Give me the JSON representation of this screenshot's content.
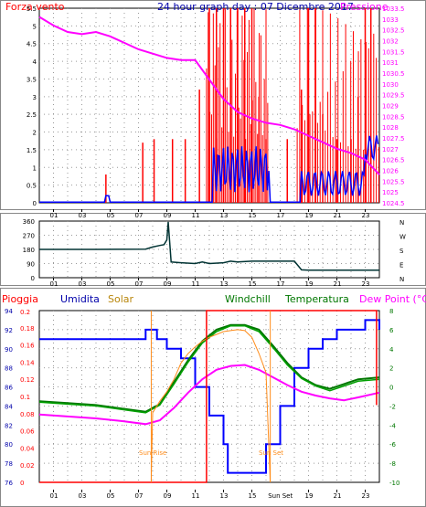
{
  "top": {
    "title": "24 hour graph day : 07 Dicembre 2017",
    "left_label": "Forza vento",
    "right_label": "Pressione",
    "left_ticks": [
      "0",
      "0.5",
      "1",
      "1.5",
      "2",
      "2.5",
      "3",
      "3.5",
      "4",
      "4.5",
      "5",
      "5.5"
    ],
    "right_ticks": [
      "1024.5",
      "1025",
      "1025.5",
      "1026",
      "1026.5",
      "1027",
      "1027.5",
      "1028",
      "1028.5",
      "1029",
      "1029.5",
      "1030",
      "1030.5",
      "1031",
      "1031.5",
      "1032",
      "1032.5",
      "1033",
      "1033.5"
    ],
    "x_ticks": [
      "01",
      "03",
      "05",
      "07",
      "09",
      "11",
      "13",
      "15",
      "17",
      "19",
      "21",
      "23"
    ]
  },
  "mid": {
    "y_ticks": [
      "360",
      "270",
      "180",
      "90",
      "0"
    ],
    "compass": [
      "N",
      "W",
      "S",
      "E",
      "N"
    ],
    "x_ticks": [
      "01",
      "03",
      "05",
      "07",
      "09",
      "11",
      "13",
      "15",
      "17",
      "19",
      "21",
      "23"
    ]
  },
  "bottom": {
    "labels": {
      "rain": "Pioggia",
      "humidity": "Umidita",
      "solar": "Solar",
      "windchill": "Windchill",
      "temperature": "Temperatura",
      "dewpoint": "Dew Point (°C)"
    },
    "humidity_ticks": [
      "76",
      "78",
      "80",
      "82",
      "84",
      "86",
      "88",
      "90",
      "92",
      "94"
    ],
    "rain_ticks": [
      "0",
      "0.02",
      "0.04",
      "0.06",
      "0.08",
      "0.1",
      "0.12",
      "0.14",
      "0.16",
      "0.18"
    ],
    "rain_top_tick": "0.2",
    "temp_ticks": [
      "-10",
      "-8",
      "-6",
      "-4",
      "-2",
      "0",
      "2",
      "4",
      "6",
      "8"
    ],
    "x_ticks": [
      "01",
      "03",
      "05",
      "07",
      "09",
      "11",
      "13",
      "15",
      "19",
      "21",
      "23"
    ],
    "sunset_tick": "Sun Set",
    "sun_rise": "Sun Rise",
    "sun_set": "Sun Set"
  },
  "colors": {
    "wind": "#ff0000",
    "wind_gust_blue": "#0000ff",
    "pressure": "#ff00ff",
    "direction": "#003333",
    "humidity": "#0000ff",
    "solar": "#ff8c1a",
    "windchill": "#00a000",
    "temperature": "#007700",
    "dewpoint": "#ff00ff",
    "rain": "#ff0000"
  },
  "chart_data": [
    {
      "type": "line",
      "title": "24 hour graph day : 07 Dicembre 2017",
      "xlabel": "",
      "x_range": [
        0,
        24
      ],
      "series": [
        {
          "name": "Forza vento",
          "axis": "left",
          "ylim": [
            0,
            5.5
          ],
          "note_values": "wind bars, many spikes to 5.5 between 12 and 16",
          "x": [
            4.7,
            7.3,
            8.1,
            9.4,
            10.3,
            11.3,
            12,
            12.5,
            13,
            13.5,
            14,
            14.5,
            15,
            15.5,
            16,
            17.5,
            18.5,
            19,
            19.5,
            20,
            21,
            22,
            22.5,
            23,
            23.4
          ],
          "values": [
            0.8,
            1.7,
            1.8,
            1.8,
            1.8,
            3.2,
            5.5,
            5.5,
            5.5,
            5.5,
            5.5,
            5.5,
            5.5,
            3,
            1.8,
            1.8,
            3.2,
            5.5,
            5.5,
            2.5,
            1.8,
            1.8,
            3,
            5.5,
            5.5
          ]
        },
        {
          "name": "Pressione",
          "axis": "right",
          "ylim": [
            1024.5,
            1033.5
          ],
          "x": [
            0,
            1,
            2,
            3,
            4,
            5,
            6,
            7,
            8,
            9,
            10,
            11,
            12,
            13,
            14,
            15,
            16,
            17,
            18,
            19,
            20,
            21,
            22,
            23,
            24
          ],
          "values": [
            1033.1,
            1032.7,
            1032.4,
            1032.3,
            1032.4,
            1032.2,
            1031.9,
            1031.6,
            1031.4,
            1031.2,
            1031.1,
            1031.1,
            1030.2,
            1029.3,
            1028.7,
            1028.4,
            1028.2,
            1028.1,
            1027.9,
            1027.6,
            1027.3,
            1027.0,
            1026.8,
            1026.5,
            1025.8
          ]
        }
      ]
    },
    {
      "type": "line",
      "title": "",
      "x_range": [
        0,
        24
      ],
      "ylim": [
        0,
        360
      ],
      "series": [
        {
          "name": "",
          "x": [
            0,
            4,
            7.5,
            8,
            8.5,
            8.8,
            9,
            9.1,
            9.3,
            10,
            11,
            11.5,
            12,
            13,
            13.5,
            14,
            15,
            16,
            17,
            18,
            18.5,
            19,
            20,
            21,
            22,
            23,
            24
          ],
          "values": [
            180,
            180,
            182,
            195,
            205,
            210,
            240,
            355,
            100,
            95,
            90,
            100,
            90,
            95,
            105,
            100,
            105,
            105,
            105,
            105,
            50,
            48,
            48,
            48,
            48,
            48,
            48
          ]
        }
      ]
    },
    {
      "type": "line",
      "title": "",
      "x_range": [
        0,
        24
      ],
      "series": [
        {
          "name": "Umidita",
          "axis": "humidity",
          "ylim": [
            76,
            94
          ],
          "x": [
            0,
            4,
            7.5,
            8.3,
            9,
            10,
            11,
            12,
            13,
            13.3,
            14,
            15,
            16,
            17,
            18,
            19,
            20,
            21,
            22,
            23,
            24
          ],
          "values": [
            91,
            91,
            92,
            91,
            90,
            89,
            86,
            83,
            80,
            77,
            77,
            77,
            80,
            84,
            88,
            90,
            91,
            92,
            92,
            93,
            92
          ]
        },
        {
          "name": "Temperatura",
          "axis": "temp",
          "ylim": [
            -10,
            8
          ],
          "x": [
            0,
            2,
            4,
            6,
            7.5,
            8.5,
            9.5,
            10.5,
            11.5,
            12.5,
            13.5,
            14.5,
            15.5,
            16.5,
            17.5,
            18.5,
            19.5,
            20.5,
            21.5,
            22.5,
            24
          ],
          "values": [
            -1.5,
            -1.7,
            -1.9,
            -2.3,
            -2.6,
            -1.8,
            0.5,
            2.8,
            4.8,
            6.0,
            6.5,
            6.5,
            6.0,
            4.3,
            2.5,
            1.0,
            0.2,
            -0.2,
            0.3,
            0.8,
            1.0
          ]
        },
        {
          "name": "Windchill",
          "axis": "temp",
          "ylim": [
            -10,
            8
          ],
          "x": [
            0,
            2,
            4,
            6,
            7.5,
            8.5,
            9.5,
            10.5,
            11.5,
            12.5,
            13.5,
            14.5,
            15.5,
            16.5,
            17.5,
            18.5,
            19.5,
            20.5,
            21.5,
            22.5,
            24
          ],
          "values": [
            -1.6,
            -1.8,
            -2,
            -2.4,
            -2.7,
            -1.9,
            0.3,
            2.6,
            4.6,
            5.8,
            6.4,
            6.4,
            5.8,
            4.1,
            2.3,
            0.9,
            0.1,
            -0.4,
            0.1,
            0.6,
            0.8
          ]
        },
        {
          "name": "Dew Point (°C)",
          "axis": "temp",
          "ylim": [
            -10,
            8
          ],
          "x": [
            0,
            2,
            4,
            6,
            7.5,
            8.5,
            9.5,
            10.5,
            11.5,
            12.5,
            13.5,
            14.5,
            15.5,
            16.5,
            17.5,
            18.5,
            19.5,
            20.5,
            21.5,
            22.5,
            24
          ],
          "values": [
            -2.9,
            -3.1,
            -3.3,
            -3.6,
            -3.9,
            -3.5,
            -2.2,
            -0.6,
            0.8,
            1.8,
            2.2,
            2.3,
            1.8,
            1.0,
            0.2,
            -0.5,
            -0.9,
            -1.2,
            -1.4,
            -1.1,
            -0.6
          ]
        },
        {
          "name": "Solar",
          "axis": "temp",
          "ylim": [
            -10,
            8
          ],
          "x": [
            7.9,
            8.0,
            8.5,
            9,
            9.5,
            10,
            10.5,
            11,
            11.5,
            12,
            12.5,
            13,
            13.5,
            14,
            14.5,
            15,
            15.5,
            16,
            16.3
          ],
          "values": [
            -10,
            -2.7,
            -1.5,
            -0.5,
            0.8,
            2.5,
            3.5,
            4.2,
            4.8,
            5.2,
            5.5,
            5.8,
            5.9,
            6.0,
            5.9,
            5.2,
            3.5,
            1.5,
            -10
          ]
        },
        {
          "name": "Pioggia",
          "axis": "rain",
          "ylim": [
            0,
            0.2
          ],
          "x": [
            0,
            11.8,
            11.8,
            23.8,
            23.8
          ],
          "values": [
            0,
            0,
            0.2,
            0.2,
            0.09
          ]
        }
      ]
    }
  ]
}
